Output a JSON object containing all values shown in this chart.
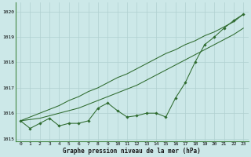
{
  "x": [
    0,
    1,
    2,
    3,
    4,
    5,
    6,
    7,
    8,
    9,
    10,
    11,
    12,
    13,
    14,
    15,
    16,
    17,
    18,
    19,
    20,
    21,
    22,
    23
  ],
  "y_main": [
    1015.7,
    1015.4,
    1015.6,
    1015.8,
    1015.5,
    1015.6,
    1015.6,
    1015.7,
    1016.2,
    1016.4,
    1016.1,
    1015.85,
    1015.9,
    1016.0,
    1016.0,
    1015.85,
    1016.6,
    1017.2,
    1018.0,
    1018.7,
    1019.0,
    1019.35,
    1019.65,
    1019.9
  ],
  "y_trend1": [
    1015.7,
    1015.85,
    1016.0,
    1016.15,
    1016.3,
    1016.5,
    1016.65,
    1016.85,
    1017.0,
    1017.2,
    1017.4,
    1017.55,
    1017.75,
    1017.95,
    1018.15,
    1018.35,
    1018.5,
    1018.7,
    1018.85,
    1019.05,
    1019.2,
    1019.4,
    1019.6,
    1019.9
  ],
  "y_trend2": [
    1015.7,
    1015.75,
    1015.8,
    1015.9,
    1016.0,
    1016.1,
    1016.2,
    1016.35,
    1016.5,
    1016.65,
    1016.8,
    1016.95,
    1017.1,
    1017.3,
    1017.5,
    1017.7,
    1017.9,
    1018.1,
    1018.3,
    1018.5,
    1018.7,
    1018.9,
    1019.1,
    1019.35
  ],
  "background_color": "#cce8e8",
  "grid_color": "#b0d0d0",
  "line_color": "#2d6a2d",
  "title": "Graphe pression niveau de la mer (hPa)",
  "ylim": [
    1014.9,
    1020.35
  ],
  "xlim": [
    -0.5,
    23.5
  ],
  "yticks": [
    1015,
    1016,
    1017,
    1018,
    1019,
    1020
  ],
  "xticks": [
    0,
    1,
    2,
    3,
    4,
    5,
    6,
    7,
    8,
    9,
    10,
    11,
    12,
    13,
    14,
    15,
    16,
    17,
    18,
    19,
    20,
    21,
    22,
    23
  ]
}
